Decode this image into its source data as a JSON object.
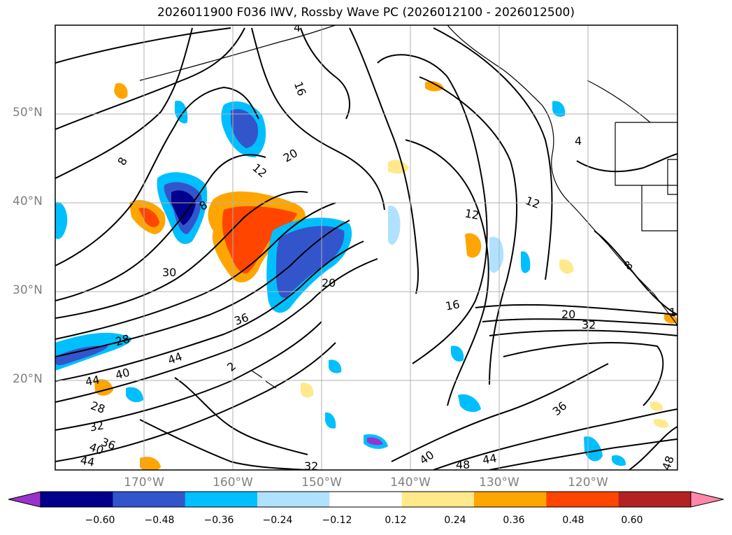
{
  "title": "2026011900 F036 IWV, Rossby Wave PC (2026012100 - 2026012500)",
  "map": {
    "latitude_labels": [
      "50°N",
      "40°N",
      "30°N",
      "20°N"
    ],
    "longitude_labels": [
      "170°W",
      "160°W",
      "150°W",
      "140°W",
      "130°W",
      "120°W"
    ],
    "gridlines": true,
    "contour_labels": [
      "16",
      "20",
      "12",
      "8",
      "30",
      "20",
      "36",
      "28",
      "44",
      "40",
      "44",
      "28",
      "32",
      "36",
      "40",
      "44",
      "32",
      "40",
      "48",
      "44",
      "36",
      "48",
      "16",
      "12",
      "12",
      "4",
      "8",
      "20",
      "32",
      "1",
      "4",
      "8",
      "2"
    ],
    "land_color": "#ffffff",
    "coastline_color": "#000000"
  },
  "colorbar": {
    "ticks": [
      "−0.60",
      "−0.48",
      "−0.36",
      "−0.24",
      "−0.12",
      "0.12",
      "0.24",
      "0.36",
      "0.48",
      "0.60"
    ],
    "colors": [
      "#9933cc",
      "#00008b",
      "#3355cc",
      "#00bfff",
      "#b0e2ff",
      "#ffffff",
      "#ffe98a",
      "#ffa500",
      "#ff4500",
      "#b22222",
      "#ff88aa"
    ],
    "extend": "both"
  }
}
